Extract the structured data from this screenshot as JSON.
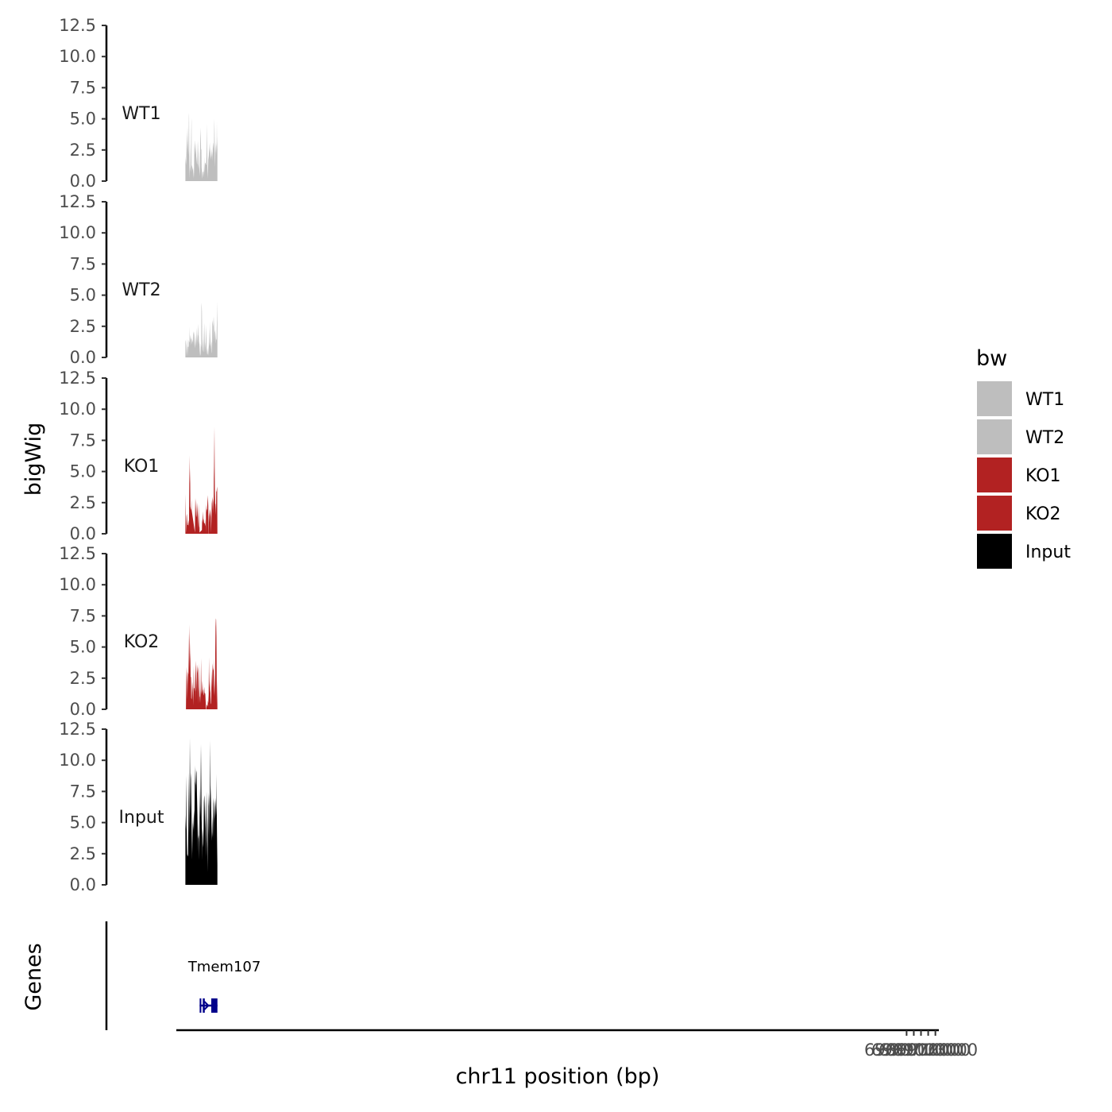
{
  "chart_data": {
    "type": "area",
    "xlabel": "chr11 position (bp)",
    "ylabel": "bigWig",
    "genes_label": "Genes",
    "x_range": [
      68967570,
      69073480
    ],
    "x_ticks": [
      69069000,
      69070000,
      69071000,
      69072000,
      69073000
    ],
    "x_tick_labels": [
      "69069000",
      "69070000",
      "69071000",
      "69072000",
      "69073000"
    ],
    "y_range": [
      0,
      12.5
    ],
    "y_ticks": [
      0,
      2.5,
      5,
      7.5,
      10,
      12.5
    ],
    "y_tick_labels": [
      "0.0",
      "2.5",
      "5.0",
      "7.5",
      "10.0",
      "12.5"
    ],
    "legend": {
      "title": "bw",
      "position": "right",
      "entries": [
        {
          "label": "WT1",
          "color": "#bebebe"
        },
        {
          "label": "WT2",
          "color": "#bebebe"
        },
        {
          "label": "KO1",
          "color": "#b22222"
        },
        {
          "label": "KO2",
          "color": "#b22222"
        },
        {
          "label": "Input",
          "color": "#000000"
        }
      ]
    },
    "series": [
      {
        "name": "WT1",
        "color": "#bebebe",
        "x": [
          68968830,
          68968900,
          68968960,
          68969000,
          68969060,
          68969110,
          68969160,
          68969200,
          68969260,
          68969310,
          68969340,
          68969380,
          68969420,
          68969460,
          68969500,
          68969580,
          68969630,
          68969670,
          68969690,
          68969700,
          68969880,
          68969940,
          68969980,
          68970020,
          68970060,
          68970120,
          68970160,
          68970220,
          68970260,
          68970300,
          68970360,
          68970390,
          68970440,
          68970480,
          68970530,
          68970570,
          68970600,
          68970640,
          68970680,
          68970700,
          68970740,
          68970820,
          68970880,
          68970900,
          68970950,
          68971000,
          68971050,
          68971080,
          68971200,
          68971260,
          68971340,
          68971390,
          68971440,
          68971480,
          68971540,
          68971580,
          68971640,
          68971680,
          68971720,
          68971760,
          68971800,
          68971860,
          68971920,
          68971980,
          68972000,
          68972070,
          68972100,
          68972160,
          68972210,
          68972260,
          68972310,
          68972350,
          68972400,
          68972430,
          68972480,
          68972520,
          68972560,
          68972600,
          68972640,
          68972680,
          68972720,
          68972760,
          68972800,
          68972840,
          68972880,
          68972920,
          68972960,
          68973000,
          68973040,
          68973080,
          68973120,
          68973160,
          68973200,
          68973230,
          68973270
        ],
        "y": [
          2.0,
          1.3,
          1.8,
          3.9,
          2.1,
          4.4,
          3.3,
          2.8,
          2.1,
          5.2,
          5.5,
          1.1,
          0.2,
          3.0,
          1.2,
          0.7,
          3.5,
          4.7,
          5.1,
          1.3,
          0.9,
          0.2,
          1.1,
          0.3,
          2.6,
          3.3,
          2.7,
          2.1,
          2.6,
          3.1,
          1.4,
          2.0,
          1.3,
          3.2,
          1.4,
          1.3,
          1.0,
          3.3,
          2.4,
          2.2,
          1.2,
          0.4,
          2.2,
          3.4,
          4.3,
          2.6,
          2.5,
          1.1,
          0.2,
          0.7,
          0.8,
          0.3,
          2.0,
          0.6,
          1.4,
          1.5,
          1.4,
          1.3,
          1.3,
          2.0,
          4.6,
          2.2,
          0.2,
          1.1,
          1.7,
          2.0,
          2.3,
          2.6,
          3.1,
          1.9,
          2.7,
          2.1,
          1.7,
          2.1,
          2.6,
          1.9,
          2.4,
          1.6,
          3.0,
          2.6,
          3.1,
          3.0,
          2.2,
          5.0,
          4.2,
          2.0,
          1.1,
          2.9,
          2.2,
          3.1,
          2.8,
          2.1,
          4.8,
          2.5,
          3.6
        ]
      },
      {
        "name": "WT2",
        "color": "#bebebe",
        "x": [
          68968830,
          68968870,
          68968910,
          68968950,
          68968990,
          68969040,
          68969110,
          68969180,
          68969230,
          68969270,
          68969300,
          68969340,
          68969390,
          68969430,
          68969470,
          68969510,
          68969560,
          68969600,
          68969640,
          68969680,
          68969720,
          68969760,
          68969820,
          68969870,
          68969910,
          68969960,
          68970000,
          68970060,
          68970120,
          68970160,
          68970210,
          68970260,
          68970280,
          68970320,
          68970360,
          68970400,
          68970440,
          68970480,
          68970520,
          68970560,
          68970600,
          68970640,
          68970680,
          68970720,
          68970760,
          68970820,
          68970880,
          68970940,
          68970980,
          68971030,
          68971060,
          68971080,
          68971120,
          68971160,
          68971200,
          68971240,
          68971290,
          68971340,
          68971380,
          68971440,
          68971490,
          68971540,
          68971580,
          68971640,
          68971700,
          68971750,
          68971800,
          68971860,
          68971900,
          68971940,
          68971980,
          68972020,
          68972080,
          68972120,
          68972160,
          68972200,
          68972240,
          68972290,
          68972330,
          68972380,
          68972420,
          68972460,
          68972500,
          68972540,
          68972580,
          68972640,
          68972680,
          68972720,
          68972760,
          68972800,
          68972850,
          68972890,
          68972940,
          68972980,
          68973020,
          68973060,
          68973110,
          68973150,
          68973190,
          68973230,
          68973270
        ],
        "y": [
          1.4,
          1.3,
          1.0,
          0.1,
          1.0,
          1.5,
          0.1,
          0.9,
          0.8,
          0.9,
          1.4,
          1.3,
          1.2,
          2.5,
          0.9,
          1.6,
          1.8,
          1.4,
          1.6,
          1.3,
          1.0,
          1.5,
          1.2,
          1.4,
          2.1,
          1.9,
          0.9,
          2.1,
          1.7,
          0.7,
          1.0,
          1.8,
          0.9,
          1.3,
          2.4,
          1.5,
          0.9,
          1.9,
          1.2,
          2.7,
          2.2,
          1.8,
          1.7,
          1.0,
          1.3,
          0.5,
          0.1,
          0.3,
          1.1,
          0.8,
          4.1,
          4.4,
          3.7,
          1.9,
          0.4,
          1.5,
          0.6,
          0.4,
          1.2,
          2.8,
          1.8,
          0.4,
          0.8,
          1.2,
          2.6,
          1.4,
          0.2,
          0.7,
          0.2,
          0.3,
          0.9,
          0.1,
          1.0,
          2.3,
          1.2,
          0.9,
          1.1,
          2.9,
          1.6,
          0.6,
          1.1,
          1.3,
          0.3,
          0.5,
          3.0,
          2.7,
          2.5,
          3.3,
          1.2,
          2.1,
          3.3,
          2.0,
          2.2,
          1.4,
          2.0,
          1.1,
          1.5,
          1.4,
          2.4,
          3.3,
          4.5
        ]
      },
      {
        "name": "KO1",
        "color": "#b22222",
        "x": [
          68968830,
          68968870,
          68968900,
          68968920,
          68968980,
          68969030,
          68969100,
          68969180,
          68969250,
          68969320,
          68969370,
          68969400,
          68969440,
          68969480,
          68969520,
          68969580,
          68969640,
          68969680,
          68969700,
          68970150,
          68970180,
          68970220,
          68970260,
          68970320,
          68970380,
          68970440,
          68970500,
          68970560,
          68970620,
          68970660,
          68970720,
          68970760,
          68970790,
          68970800,
          68971120,
          68971160,
          68971220,
          68971260,
          68971320,
          68971380,
          68971440,
          68971480,
          68971540,
          68971600,
          68971640,
          68971660,
          68971700,
          68971760,
          68971800,
          68971840,
          68971900,
          68971960,
          68972000,
          68972040,
          68972060,
          68972080,
          68972120,
          68972160,
          68972200,
          68972240,
          68972280,
          68972320,
          68972370,
          68972400,
          68972460,
          68972490,
          68972540,
          68972580,
          68972620,
          68972660,
          68972700,
          68972740,
          68972780,
          68972810,
          68972860,
          68972920,
          68972960,
          68973000,
          68973040,
          68973080,
          68973120,
          68973160,
          68973200,
          68973240,
          68973270
        ],
        "y": [
          3.2,
          1.8,
          0.1,
          0.2,
          1.4,
          1.6,
          0.7,
          0.7,
          1.1,
          0.6,
          3.9,
          6.3,
          4.0,
          5.3,
          2.2,
          2.0,
          1.9,
          2.8,
          1.9,
          0.1,
          2.0,
          2.9,
          1.4,
          2.8,
          1.5,
          1.3,
          2.5,
          1.5,
          0.3,
          2.4,
          1.0,
          0.6,
          0.5,
          0.1,
          0.3,
          1.2,
          0.9,
          1.8,
          1.2,
          1.1,
          0.8,
          0.9,
          0.8,
          0.6,
          1.2,
          0.1,
          2.4,
          1.7,
          2.0,
          1.9,
          2.5,
          3.1,
          2.2,
          0.1,
          0.1,
          1.4,
          1.7,
          0.9,
          2.0,
          1.4,
          2.0,
          1.7,
          1.3,
          0.1,
          1.5,
          2.4,
          2.7,
          3.0,
          1.9,
          2.8,
          2.5,
          1.6,
          4.4,
          5.4,
          8.6,
          3.3,
          2.4,
          2.4,
          2.0,
          1.5,
          3.4,
          3.4,
          3.6,
          3.8,
          0.2
        ],
        "gaps_at": []
      },
      {
        "name": "KO2",
        "color": "#b22222",
        "x": [
          68968910,
          68968950,
          68969000,
          68969060,
          68969100,
          68969140,
          68969200,
          68969250,
          68969290,
          68969330,
          68969370,
          68969410,
          68969440,
          68969480,
          68969520,
          68969560,
          68969600,
          68969640,
          68969700,
          68969740,
          68969780,
          68969830,
          68969880,
          68969930,
          68969980,
          68970020,
          68970080,
          68970140,
          68970180,
          68970230,
          68970260,
          68970310,
          68970360,
          68970400,
          68970440,
          68970480,
          68970520,
          68970580,
          68970640,
          68970680,
          68970740,
          68970800,
          68970840,
          68970880,
          68970920,
          68970960,
          68971000,
          68971060,
          68971100,
          68971140,
          68971200,
          68971240,
          68971290,
          68971340,
          68971380,
          68971440,
          68971500,
          68971560,
          68971600,
          68971680,
          68971740,
          68971780,
          68971850,
          68971920,
          68971960,
          68972000,
          68972060,
          68972100,
          68972130,
          68972180,
          68972220,
          68972270,
          68972300,
          68972340,
          68972380,
          68972420,
          68972480,
          68972540,
          68972580,
          68972620,
          68972680,
          68972740,
          68972760,
          68972800,
          68972850,
          68972890,
          68972940,
          68972980,
          68973020,
          68973060,
          68973100,
          68973140,
          68973200,
          68973240,
          68973270
        ],
        "y": [
          0.1,
          2.2,
          3.4,
          2.6,
          0.8,
          2.0,
          3.0,
          2.8,
          4.1,
          6.1,
          3.1,
          6.8,
          5.4,
          4.5,
          3.9,
          2.6,
          2.6,
          0.9,
          0.8,
          2.6,
          0.9,
          2.2,
          1.6,
          0.3,
          3.5,
          1.7,
          1.7,
          1.4,
          3.5,
          0.7,
          3.9,
          3.4,
          1.4,
          2.5,
          3.6,
          3.3,
          2.9,
          3.4,
          0.4,
          3.7,
          1.8,
          1.0,
          1.0,
          0.5,
          1.3,
          1.7,
          4.1,
          1.5,
          1.2,
          1.5,
          2.3,
          1.6,
          1.5,
          1.1,
          1.2,
          1.8,
          1.3,
          1.3,
          1.2,
          0.1,
          0.1,
          0.3,
          0.4,
          0.2,
          0.7,
          0.5,
          1.2,
          4.2,
          3.0,
          1.7,
          2.3,
          1.3,
          1.6,
          0.4,
          0.5,
          1.1,
          3.1,
          1.7,
          2.9,
          3.7,
          3.1,
          3.3,
          4.1,
          2.0,
          1.1,
          2.9,
          1.0,
          4.5,
          6.6,
          7.3,
          7.2,
          5.8,
          0.4,
          2.4,
          0.1
        ]
      },
      {
        "name": "Input",
        "color": "#000000",
        "x": [
          68968830,
          68968860,
          68968890,
          68968920,
          68968960,
          68968990,
          68969020,
          68969050,
          68969080,
          68969110,
          68969140,
          68969170,
          68969200,
          68969240,
          68969270,
          68969300,
          68969330,
          68969360,
          68969390,
          68969420,
          68969450,
          68969480,
          68969520,
          68969560,
          68969600,
          68969640,
          68969680,
          68969720,
          68969760,
          68969800,
          68969840,
          68969880,
          68969920,
          68969960,
          68970000,
          68970040,
          68970080,
          68970120,
          68970160,
          68970200,
          68970240,
          68970280,
          68970320,
          68970360,
          68970400,
          68970440,
          68970480,
          68970520,
          68970560,
          68970600,
          68970640,
          68970680,
          68970720,
          68970760,
          68970800,
          68970840,
          68970880,
          68970920,
          68970960,
          68971000,
          68971040,
          68971080,
          68971120,
          68971160,
          68971200,
          68971240,
          68971280,
          68971320,
          68971360,
          68971400,
          68971440,
          68971480,
          68971520,
          68971560,
          68971600,
          68971640,
          68971680,
          68971720,
          68971760,
          68971800,
          68971840,
          68971880,
          68971920,
          68971960,
          68972000,
          68972040,
          68972080,
          68972120,
          68972160,
          68972200,
          68972240,
          68972280,
          68972320,
          68972360,
          68972400,
          68972440,
          68972480,
          68972520,
          68972560,
          68972600,
          68972640,
          68972680,
          68972720,
          68972760,
          68972800,
          68972840,
          68972880,
          68972920,
          68972960,
          68973000,
          68973040,
          68973080,
          68973120,
          68973160,
          68973200,
          68973240,
          68973270
        ],
        "y": [
          5.6,
          5.0,
          4.5,
          6.5,
          8.8,
          4.4,
          4.8,
          3.2,
          2.4,
          2.4,
          2.3,
          2.3,
          2.5,
          4.4,
          6.5,
          9.0,
          6.5,
          4.0,
          6.5,
          9.0,
          11.8,
          9.5,
          6.5,
          5.5,
          8.5,
          9.0,
          6.0,
          2.0,
          4.0,
          5.6,
          2.5,
          5.0,
          4.4,
          5.5,
          4.2,
          6.0,
          5.5,
          7.5,
          9.6,
          8.3,
          8.0,
          9.4,
          7.2,
          9.2,
          9.0,
          7.0,
          2.6,
          7.3,
          5.0,
          4.0,
          3.7,
          4.0,
          3.4,
          2.0,
          5.8,
          7.8,
          5.4,
          11.3,
          6.5,
          5.0,
          11.3,
          7.5,
          2.0,
          3.8,
          4.6,
          4.0,
          3.3,
          3.0,
          4.7,
          6.6,
          7.2,
          7.0,
          6.0,
          4.5,
          6.8,
          4.0,
          2.2,
          5.2,
          7.5,
          6.5,
          4.2,
          3.0,
          1.0,
          5.5,
          4.0,
          7.5,
          6.3,
          7.3,
          6.0,
          3.5,
          7.5,
          11.6,
          6.6,
          8.0,
          6.4,
          5.5,
          3.5,
          4.5,
          5.5,
          4.2,
          3.8,
          6.5,
          7.0,
          3.6,
          7.0,
          5.0,
          6.8,
          6.2,
          5.3,
          5.8,
          7.0,
          6.5,
          5.6,
          8.9,
          5.2,
          3.0,
          1.6
        ]
      }
    ],
    "genes": [
      {
        "name": "Tmem107",
        "start": 68970810,
        "end": 68973280,
        "strand": "+",
        "exons": [
          [
            68970810,
            68971040
          ],
          [
            68971220,
            68971290
          ],
          [
            68971310,
            68971520
          ],
          [
            68972420,
            68973280
          ]
        ]
      }
    ]
  }
}
